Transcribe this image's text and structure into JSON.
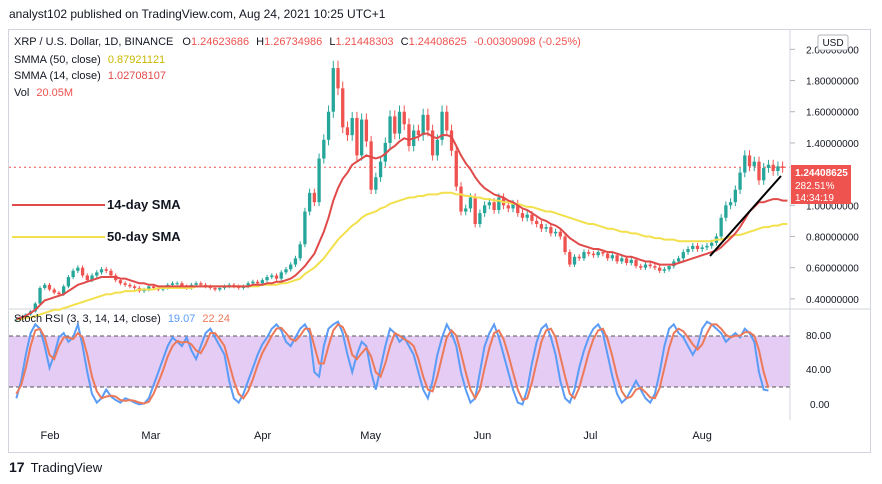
{
  "header": {
    "text": "analyst102 published on TradingView.com, Aug 24, 2021 10:25 UTC+1"
  },
  "legend": {
    "symbol": "XRP / U.S. Dollar, 1D, BINANCE",
    "o_label": "O",
    "o_value": "1.24623686",
    "h_label": "H",
    "h_value": "1.26734986",
    "l_label": "L",
    "l_value": "1.21448303",
    "c_label": "C",
    "c_value": "1.24408625",
    "change": "-0.00309098 (-0.25%)",
    "sma50_label": "SMMA (50, close)",
    "sma50_value": "0.87921121",
    "sma14_label": "SMMA (14, close)",
    "sma14_value": "1.02708107",
    "vol_label": "Vol",
    "vol_value": "20.05M"
  },
  "currency": "USD",
  "price_tag": {
    "price": "1.24408625",
    "pct": "282.51%",
    "countdown": "14:34:19"
  },
  "annotations": {
    "sma14": "14-day SMA",
    "sma50": "50-day SMA"
  },
  "stoch": {
    "label": "Stoch RSI (3, 3, 14, 14, close)",
    "k": "19.07",
    "d": "22.24"
  },
  "brand": {
    "name": "TradingView"
  },
  "colors": {
    "up": "#26a69a",
    "down": "#ef5350",
    "sma14": "#e04a4a",
    "sma50": "#f2e04c",
    "k": "#5b9cf6",
    "d": "#ec7a5a",
    "band": "#e4ccf5",
    "trend": "#000000"
  },
  "chart_data": {
    "type": "candlestick",
    "title": "XRP / U.S. Dollar, 1D, BINANCE",
    "x_labels": [
      "Feb",
      "Mar",
      "Apr",
      "May",
      "Jun",
      "Jul",
      "Aug"
    ],
    "y_ticks": [
      "2.00000000",
      "1.80000000",
      "1.60000000",
      "1.40000000",
      "1.00000000",
      "0.80000000",
      "0.60000000",
      "0.40000000"
    ],
    "ylim": [
      0.38,
      2.06
    ],
    "close_series": [
      0.27,
      0.28,
      0.3,
      0.32,
      0.37,
      0.47,
      0.49,
      0.46,
      0.44,
      0.43,
      0.48,
      0.54,
      0.58,
      0.6,
      0.55,
      0.52,
      0.55,
      0.57,
      0.59,
      0.58,
      0.55,
      0.52,
      0.5,
      0.49,
      0.48,
      0.47,
      0.45,
      0.46,
      0.48,
      0.47,
      0.46,
      0.47,
      0.49,
      0.5,
      0.5,
      0.48,
      0.47,
      0.49,
      0.5,
      0.49,
      0.48,
      0.47,
      0.46,
      0.47,
      0.48,
      0.49,
      0.48,
      0.47,
      0.48,
      0.5,
      0.51,
      0.5,
      0.52,
      0.54,
      0.55,
      0.53,
      0.57,
      0.59,
      0.62,
      0.66,
      0.75,
      0.96,
      1.08,
      1.02,
      1.3,
      1.42,
      1.6,
      1.88,
      1.75,
      1.5,
      1.45,
      1.56,
      1.32,
      1.55,
      1.41,
      1.1,
      1.18,
      1.28,
      1.4,
      1.57,
      1.46,
      1.6,
      1.52,
      1.38,
      1.48,
      1.45,
      1.58,
      1.48,
      1.32,
      1.42,
      1.6,
      1.48,
      1.35,
      1.12,
      0.96,
      0.98,
      1.05,
      0.88,
      0.95,
      1.0,
      1.02,
      0.97,
      1.05,
      1.0,
      0.98,
      1.01,
      0.95,
      0.92,
      0.94,
      0.9,
      0.88,
      0.85,
      0.86,
      0.82,
      0.83,
      0.8,
      0.7,
      0.62,
      0.67,
      0.66,
      0.7,
      0.69,
      0.68,
      0.7,
      0.69,
      0.66,
      0.68,
      0.64,
      0.66,
      0.63,
      0.65,
      0.61,
      0.6,
      0.62,
      0.61,
      0.6,
      0.58,
      0.59,
      0.61,
      0.64,
      0.66,
      0.7,
      0.72,
      0.74,
      0.72,
      0.73,
      0.74,
      0.76,
      0.8,
      0.92,
      1.0,
      1.02,
      1.1,
      1.21,
      1.32,
      1.25,
      1.28,
      1.16,
      1.24,
      1.26,
      1.22,
      1.25,
      1.24
    ],
    "sma14": [
      0.27,
      0.28,
      0.29,
      0.31,
      0.33,
      0.36,
      0.39,
      0.4,
      0.41,
      0.42,
      0.43,
      0.45,
      0.47,
      0.49,
      0.5,
      0.51,
      0.52,
      0.53,
      0.54,
      0.54,
      0.54,
      0.54,
      0.53,
      0.53,
      0.52,
      0.51,
      0.5,
      0.5,
      0.49,
      0.49,
      0.48,
      0.48,
      0.48,
      0.48,
      0.48,
      0.48,
      0.48,
      0.48,
      0.48,
      0.48,
      0.48,
      0.48,
      0.48,
      0.48,
      0.48,
      0.48,
      0.48,
      0.48,
      0.48,
      0.48,
      0.49,
      0.49,
      0.49,
      0.5,
      0.5,
      0.51,
      0.51,
      0.52,
      0.53,
      0.55,
      0.58,
      0.61,
      0.65,
      0.69,
      0.76,
      0.83,
      0.92,
      1.03,
      1.11,
      1.17,
      1.21,
      1.26,
      1.28,
      1.3,
      1.32,
      1.31,
      1.3,
      1.31,
      1.33,
      1.36,
      1.38,
      1.41,
      1.43,
      1.42,
      1.43,
      1.44,
      1.46,
      1.46,
      1.44,
      1.43,
      1.45,
      1.45,
      1.44,
      1.38,
      1.32,
      1.27,
      1.23,
      1.18,
      1.14,
      1.11,
      1.09,
      1.07,
      1.06,
      1.05,
      1.03,
      1.02,
      1.0,
      0.98,
      0.97,
      0.95,
      0.93,
      0.91,
      0.9,
      0.88,
      0.87,
      0.85,
      0.82,
      0.79,
      0.77,
      0.75,
      0.74,
      0.73,
      0.72,
      0.72,
      0.71,
      0.7,
      0.7,
      0.69,
      0.68,
      0.67,
      0.67,
      0.66,
      0.65,
      0.64,
      0.64,
      0.63,
      0.62,
      0.62,
      0.62,
      0.62,
      0.63,
      0.64,
      0.65,
      0.66,
      0.67,
      0.68,
      0.69,
      0.7,
      0.71,
      0.73,
      0.76,
      0.79,
      0.82,
      0.86,
      0.91,
      0.96,
      0.99,
      1.02,
      1.02,
      1.03,
      1.04,
      1.04,
      1.03,
      1.03
    ],
    "sma50": [
      0.27,
      0.27,
      0.28,
      0.28,
      0.29,
      0.3,
      0.31,
      0.32,
      0.33,
      0.33,
      0.34,
      0.35,
      0.36,
      0.37,
      0.38,
      0.39,
      0.4,
      0.41,
      0.42,
      0.43,
      0.43,
      0.44,
      0.44,
      0.45,
      0.45,
      0.45,
      0.46,
      0.46,
      0.46,
      0.46,
      0.47,
      0.47,
      0.47,
      0.47,
      0.47,
      0.47,
      0.47,
      0.47,
      0.48,
      0.48,
      0.48,
      0.48,
      0.48,
      0.48,
      0.48,
      0.48,
      0.48,
      0.48,
      0.48,
      0.48,
      0.48,
      0.48,
      0.49,
      0.49,
      0.49,
      0.49,
      0.5,
      0.5,
      0.51,
      0.52,
      0.53,
      0.56,
      0.58,
      0.6,
      0.63,
      0.66,
      0.7,
      0.74,
      0.78,
      0.81,
      0.84,
      0.87,
      0.89,
      0.92,
      0.94,
      0.95,
      0.96,
      0.98,
      0.99,
      1.01,
      1.02,
      1.03,
      1.04,
      1.05,
      1.05,
      1.06,
      1.06,
      1.07,
      1.07,
      1.07,
      1.08,
      1.08,
      1.08,
      1.07,
      1.07,
      1.06,
      1.06,
      1.05,
      1.05,
      1.04,
      1.04,
      1.03,
      1.03,
      1.02,
      1.02,
      1.01,
      1.01,
      1.0,
      0.99,
      0.99,
      0.98,
      0.97,
      0.96,
      0.96,
      0.95,
      0.94,
      0.93,
      0.92,
      0.91,
      0.9,
      0.89,
      0.88,
      0.88,
      0.87,
      0.86,
      0.85,
      0.85,
      0.84,
      0.83,
      0.83,
      0.82,
      0.82,
      0.81,
      0.8,
      0.8,
      0.79,
      0.79,
      0.78,
      0.78,
      0.78,
      0.77,
      0.77,
      0.77,
      0.77,
      0.77,
      0.77,
      0.77,
      0.77,
      0.78,
      0.78,
      0.79,
      0.8,
      0.81,
      0.81,
      0.82,
      0.83,
      0.84,
      0.85,
      0.86,
      0.86,
      0.87,
      0.87,
      0.88,
      0.88
    ],
    "stoch_k": [
      10,
      30,
      60,
      85,
      95,
      90,
      70,
      45,
      60,
      80,
      85,
      75,
      80,
      95,
      70,
      40,
      15,
      5,
      10,
      20,
      12,
      8,
      5,
      10,
      8,
      5,
      3,
      4,
      10,
      25,
      40,
      55,
      70,
      80,
      75,
      70,
      80,
      65,
      55,
      70,
      85,
      90,
      80,
      70,
      60,
      30,
      10,
      5,
      15,
      30,
      45,
      60,
      72,
      80,
      90,
      95,
      88,
      75,
      70,
      80,
      90,
      95,
      85,
      40,
      35,
      70,
      90,
      95,
      98,
      85,
      60,
      40,
      60,
      75,
      70,
      40,
      20,
      45,
      70,
      90,
      85,
      75,
      80,
      70,
      60,
      40,
      20,
      10,
      30,
      60,
      80,
      95,
      85,
      70,
      40,
      20,
      5,
      10,
      40,
      70,
      85,
      95,
      80,
      60,
      40,
      20,
      5,
      3,
      20,
      50,
      75,
      90,
      95,
      80,
      60,
      30,
      10,
      5,
      20,
      45,
      65,
      80,
      90,
      95,
      85,
      60,
      35,
      15,
      5,
      10,
      20,
      30,
      20,
      10,
      5,
      15,
      40,
      70,
      90,
      95,
      85,
      80,
      70,
      60,
      70,
      90,
      98,
      95,
      90,
      85,
      75,
      80,
      85,
      80,
      90,
      85,
      75,
      40,
      20,
      19
    ],
    "stoch_d": [
      15,
      25,
      45,
      70,
      88,
      90,
      80,
      60,
      55,
      70,
      80,
      80,
      78,
      85,
      80,
      60,
      35,
      18,
      10,
      12,
      13,
      12,
      8,
      7,
      8,
      7,
      5,
      4,
      6,
      15,
      28,
      42,
      58,
      70,
      76,
      74,
      75,
      72,
      65,
      62,
      72,
      85,
      85,
      78,
      70,
      50,
      30,
      15,
      10,
      18,
      32,
      48,
      62,
      72,
      82,
      90,
      91,
      85,
      78,
      76,
      82,
      90,
      90,
      70,
      50,
      50,
      70,
      88,
      95,
      92,
      80,
      60,
      55,
      62,
      68,
      58,
      40,
      35,
      50,
      70,
      85,
      82,
      78,
      75,
      70,
      55,
      35,
      20,
      18,
      35,
      58,
      80,
      88,
      82,
      62,
      40,
      20,
      10,
      20,
      45,
      68,
      85,
      88,
      78,
      60,
      40,
      20,
      8,
      10,
      28,
      52,
      75,
      88,
      90,
      80,
      58,
      35,
      15,
      10,
      22,
      42,
      62,
      78,
      88,
      90,
      78,
      58,
      35,
      18,
      10,
      12,
      20,
      22,
      17,
      11,
      10,
      22,
      45,
      68,
      85,
      90,
      87,
      80,
      72,
      66,
      72,
      85,
      95,
      95,
      90,
      83,
      80,
      82,
      82,
      86,
      86,
      82,
      65,
      40,
      22
    ]
  }
}
